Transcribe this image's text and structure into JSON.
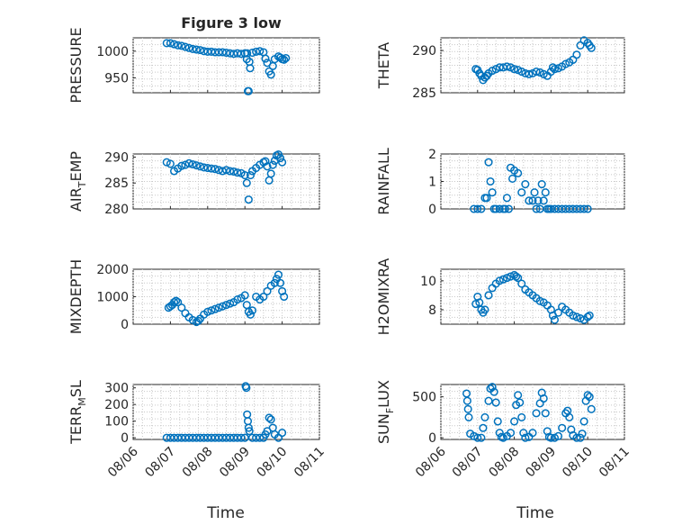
{
  "figure": {
    "title": "Figure 3 low",
    "time_label": "Time",
    "marker_color": "#0072BD"
  },
  "chart_data": [
    {
      "type": "scatter",
      "ylabel": "PRESSURE",
      "ylabel_sub": null,
      "ylim": [
        922,
        1025
      ],
      "yticks": [
        950,
        1000
      ],
      "xticklabels": false,
      "series": [
        {
          "x": [
            0.9,
            1.0,
            1.1,
            1.2,
            1.3,
            1.4,
            1.5,
            1.6,
            1.7,
            1.8,
            1.9,
            2.0,
            2.1,
            2.2,
            2.3,
            2.4,
            2.5,
            2.6,
            2.7,
            2.8,
            2.9,
            3.0,
            3.05,
            3.06,
            3.08,
            3.1,
            3.12,
            3.14,
            3.2,
            3.3,
            3.4,
            3.5,
            3.55,
            3.6,
            3.65,
            3.7,
            3.75,
            3.8,
            3.9,
            3.95,
            4.0,
            4.05,
            4.1
          ],
          "y": [
            1015,
            1015,
            1013,
            1011,
            1010,
            1008,
            1006,
            1004,
            1003,
            1002,
            1000,
            999,
            999,
            998,
            998,
            998,
            997,
            996,
            995,
            996,
            995,
            996,
            985,
            996,
            925,
            925,
            980,
            968,
            997,
            999,
            1000,
            998,
            986,
            978,
            962,
            956,
            972,
            985,
            990,
            988,
            985,
            984,
            987
          ]
        }
      ]
    },
    {
      "type": "scatter",
      "ylabel": "THETA",
      "ylabel_sub": null,
      "ylim": [
        285,
        291.5
      ],
      "yticks": [
        285,
        290
      ],
      "xticklabels": false,
      "series": [
        {
          "x": [
            0.95,
            1.0,
            1.05,
            1.1,
            1.15,
            1.2,
            1.25,
            1.3,
            1.4,
            1.5,
            1.6,
            1.7,
            1.8,
            1.9,
            2.0,
            2.1,
            2.2,
            2.3,
            2.4,
            2.5,
            2.6,
            2.7,
            2.8,
            2.9,
            3.0,
            3.05,
            3.1,
            3.2,
            3.3,
            3.4,
            3.5,
            3.6,
            3.7,
            3.8,
            3.9,
            4.0,
            4.05,
            4.1
          ],
          "y": [
            287.8,
            287.7,
            287.3,
            287.0,
            286.5,
            286.8,
            287.0,
            287.3,
            287.6,
            287.8,
            288.0,
            288.0,
            288.1,
            288.0,
            287.8,
            287.7,
            287.5,
            287.3,
            287.2,
            287.3,
            287.5,
            287.4,
            287.2,
            287.0,
            287.5,
            288.0,
            287.8,
            287.9,
            288.1,
            288.4,
            288.6,
            288.9,
            289.5,
            290.6,
            291.2,
            290.9,
            290.6,
            290.3
          ]
        }
      ]
    },
    {
      "type": "scatter",
      "ylabel": "AIR",
      "ylabel_sub": "T",
      "ylabel_suffix": "EMP",
      "ylim": [
        280,
        290.6
      ],
      "yticks": [
        280,
        285,
        290
      ],
      "xticklabels": false,
      "series": [
        {
          "x": [
            0.9,
            1.0,
            1.1,
            1.2,
            1.3,
            1.4,
            1.5,
            1.6,
            1.7,
            1.8,
            1.9,
            2.0,
            2.1,
            2.2,
            2.3,
            2.4,
            2.5,
            2.6,
            2.7,
            2.8,
            2.9,
            3.0,
            3.05,
            3.1,
            3.15,
            3.2,
            3.3,
            3.4,
            3.5,
            3.55,
            3.6,
            3.65,
            3.7,
            3.75,
            3.8,
            3.85,
            3.9,
            3.95,
            4.0
          ],
          "y": [
            289.0,
            288.7,
            287.3,
            287.8,
            288.3,
            288.5,
            288.8,
            288.6,
            288.4,
            288.2,
            288.0,
            287.9,
            287.8,
            287.7,
            287.5,
            287.3,
            287.5,
            287.3,
            287.2,
            287.0,
            286.9,
            286.5,
            285.0,
            281.8,
            286.5,
            287.3,
            287.9,
            288.5,
            289.0,
            289.2,
            288.2,
            285.5,
            286.8,
            288.5,
            289.3,
            290.3,
            290.5,
            289.8,
            289.0
          ]
        }
      ]
    },
    {
      "type": "scatter",
      "ylabel": "RAINFALL",
      "ylabel_sub": null,
      "ylim": [
        0,
        2
      ],
      "yticks": [
        0,
        1,
        2
      ],
      "xticklabels": false,
      "series": [
        {
          "x": [
            0.9,
            1.0,
            1.1,
            1.2,
            1.25,
            1.3,
            1.35,
            1.4,
            1.45,
            1.5,
            1.6,
            1.7,
            1.75,
            1.8,
            1.85,
            1.9,
            1.95,
            2.0,
            2.1,
            2.2,
            2.3,
            2.4,
            2.5,
            2.55,
            2.6,
            2.65,
            2.7,
            2.75,
            2.8,
            2.85,
            2.9,
            2.95,
            3.0,
            3.1,
            3.2,
            3.3,
            3.4,
            3.5,
            3.6,
            3.7,
            3.8,
            3.9,
            4.0
          ],
          "y": [
            0,
            0,
            0,
            0.4,
            0.4,
            1.7,
            1.0,
            0.6,
            0,
            0,
            0,
            0,
            0,
            0.4,
            0,
            1.5,
            1.1,
            1.4,
            1.3,
            0.6,
            0.9,
            0.3,
            0.3,
            0.6,
            0,
            0.3,
            0,
            0.9,
            0.3,
            0.6,
            0,
            0,
            0,
            0,
            0,
            0,
            0,
            0,
            0,
            0,
            0,
            0,
            0
          ]
        }
      ]
    },
    {
      "type": "scatter",
      "ylabel": "MIXDEPTH",
      "ylabel_sub": null,
      "ylim": [
        0,
        2000
      ],
      "yticks": [
        0,
        1000,
        2000
      ],
      "xticklabels": false,
      "series": [
        {
          "x": [
            0.95,
            1.0,
            1.05,
            1.1,
            1.15,
            1.2,
            1.3,
            1.4,
            1.5,
            1.6,
            1.7,
            1.75,
            1.8,
            1.9,
            2.0,
            2.1,
            2.2,
            2.3,
            2.4,
            2.5,
            2.6,
            2.7,
            2.8,
            2.9,
            3.0,
            3.05,
            3.1,
            3.15,
            3.2,
            3.3,
            3.4,
            3.5,
            3.6,
            3.7,
            3.8,
            3.85,
            3.9,
            3.95,
            4.0,
            4.05
          ],
          "y": [
            600,
            650,
            700,
            800,
            850,
            800,
            600,
            400,
            250,
            150,
            80,
            120,
            200,
            350,
            450,
            500,
            550,
            600,
            650,
            700,
            750,
            800,
            900,
            950,
            1050,
            700,
            450,
            350,
            500,
            1000,
            900,
            1000,
            1200,
            1400,
            1500,
            1650,
            1800,
            1500,
            1200,
            1000
          ]
        }
      ]
    },
    {
      "type": "scatter",
      "ylabel": "H2OMIXRA",
      "ylabel_sub": null,
      "ylim": [
        7,
        10.8
      ],
      "yticks": [
        8,
        10
      ],
      "xticklabels": false,
      "series": [
        {
          "x": [
            0.95,
            1.0,
            1.05,
            1.1,
            1.15,
            1.2,
            1.3,
            1.4,
            1.5,
            1.6,
            1.7,
            1.8,
            1.9,
            2.0,
            2.05,
            2.1,
            2.2,
            2.3,
            2.4,
            2.5,
            2.6,
            2.7,
            2.8,
            2.9,
            3.0,
            3.05,
            3.1,
            3.2,
            3.3,
            3.4,
            3.5,
            3.6,
            3.7,
            3.8,
            3.9,
            4.0,
            4.05
          ],
          "y": [
            8.4,
            8.9,
            8.5,
            8.0,
            7.8,
            8.0,
            9.0,
            9.5,
            9.8,
            10.0,
            10.1,
            10.2,
            10.3,
            10.4,
            10.3,
            10.2,
            9.8,
            9.4,
            9.2,
            9.0,
            8.8,
            8.6,
            8.5,
            8.3,
            8.0,
            7.6,
            7.3,
            7.8,
            8.2,
            8.0,
            7.8,
            7.6,
            7.5,
            7.4,
            7.3,
            7.5,
            7.6
          ]
        }
      ]
    },
    {
      "type": "scatter",
      "ylabel": "TERR",
      "ylabel_sub": "M",
      "ylabel_suffix": "SL",
      "ylim": [
        -10,
        320
      ],
      "yticks": [
        0,
        100,
        200,
        300
      ],
      "xticklabels": true,
      "series": [
        {
          "x": [
            0.9,
            1.0,
            1.1,
            1.2,
            1.3,
            1.4,
            1.5,
            1.6,
            1.7,
            1.8,
            1.9,
            2.0,
            2.1,
            2.2,
            2.3,
            2.4,
            2.5,
            2.6,
            2.7,
            2.8,
            2.9,
            3.0,
            3.02,
            3.04,
            3.06,
            3.08,
            3.1,
            3.12,
            3.2,
            3.3,
            3.4,
            3.5,
            3.55,
            3.6,
            3.65,
            3.7,
            3.75,
            3.8,
            3.9,
            4.0
          ],
          "y": [
            0,
            0,
            0,
            0,
            0,
            0,
            0,
            0,
            0,
            0,
            0,
            0,
            0,
            0,
            0,
            0,
            0,
            0,
            0,
            0,
            0,
            0,
            310,
            300,
            140,
            100,
            60,
            40,
            0,
            0,
            0,
            0,
            20,
            40,
            120,
            110,
            60,
            20,
            0,
            30
          ]
        }
      ]
    },
    {
      "type": "scatter",
      "ylabel": "SUN",
      "ylabel_sub": "F",
      "ylabel_suffix": "LUX",
      "ylim": [
        -20,
        650
      ],
      "yticks": [
        0,
        500
      ],
      "xticklabels": true,
      "series": [
        {
          "x": [
            0.7,
            0.72,
            0.74,
            0.76,
            0.8,
            0.9,
            1.0,
            1.1,
            1.15,
            1.2,
            1.3,
            1.35,
            1.4,
            1.45,
            1.5,
            1.55,
            1.6,
            1.65,
            1.7,
            1.8,
            1.9,
            2.0,
            2.05,
            2.1,
            2.15,
            2.2,
            2.25,
            2.3,
            2.4,
            2.5,
            2.6,
            2.7,
            2.75,
            2.8,
            2.85,
            2.9,
            2.95,
            3.0,
            3.1,
            3.2,
            3.3,
            3.4,
            3.45,
            3.5,
            3.55,
            3.6,
            3.7,
            3.8,
            3.85,
            3.9,
            3.95,
            4.0,
            4.05,
            4.1
          ],
          "y": [
            540,
            450,
            350,
            250,
            50,
            20,
            0,
            0,
            120,
            250,
            450,
            600,
            620,
            560,
            430,
            200,
            60,
            10,
            0,
            20,
            60,
            200,
            400,
            520,
            430,
            250,
            60,
            0,
            10,
            60,
            300,
            420,
            550,
            480,
            300,
            80,
            10,
            0,
            0,
            20,
            120,
            300,
            330,
            250,
            100,
            30,
            0,
            0,
            50,
            200,
            450,
            520,
            500,
            350
          ]
        }
      ]
    }
  ],
  "xaxis": {
    "ticks": [
      0,
      1,
      2,
      3,
      4,
      5
    ],
    "ticklabels": [
      "08/06",
      "08/07",
      "08/08",
      "08/09",
      "08/10",
      "08/11"
    ],
    "xlim": [
      0,
      5
    ]
  }
}
